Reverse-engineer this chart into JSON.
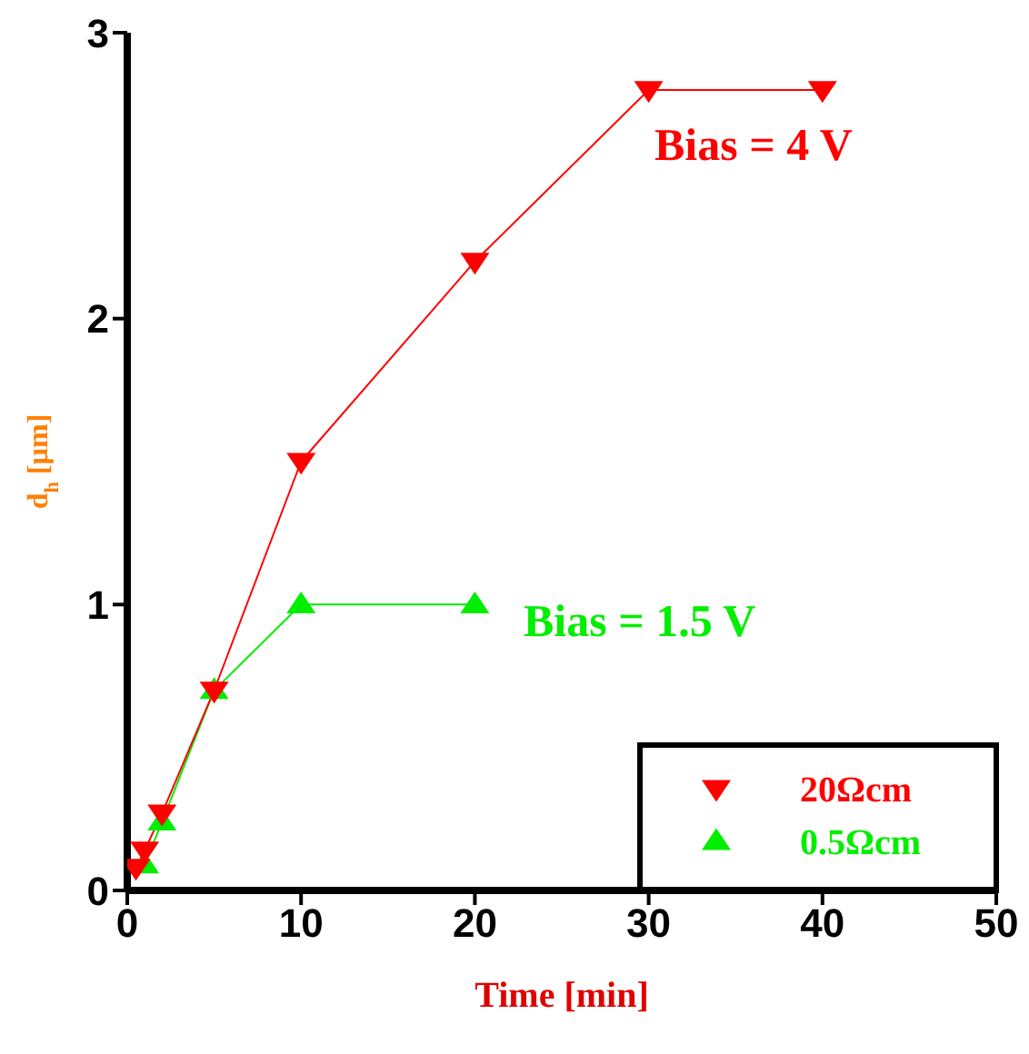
{
  "chart_data": {
    "type": "line",
    "xlabel": "Time [min]",
    "ylabel": "d$_{h}$ [µm]",
    "xlim": [
      0,
      50
    ],
    "ylim": [
      0,
      3
    ],
    "xticks": [
      0,
      10,
      20,
      30,
      40,
      50
    ],
    "yticks": [
      0,
      1,
      2,
      3
    ],
    "legend": "bottom right",
    "marker": "triangle",
    "series": [
      {
        "name": "20Ωcm",
        "color": "#ff0000",
        "marker": "triangle-down",
        "x": [
          0.5,
          1,
          2,
          5,
          10,
          20,
          30,
          40
        ],
        "values": [
          0.08,
          0.14,
          0.27,
          0.7,
          1.5,
          2.2,
          2.8,
          2.8
        ]
      },
      {
        "name": "0.5Ωcm",
        "color": "#00ee00",
        "marker": "triangle",
        "x": [
          1,
          2,
          5,
          10,
          20
        ],
        "values": [
          0.09,
          0.24,
          0.7,
          1.0,
          1.0
        ]
      }
    ],
    "annotations": [
      "Bias = 4 V",
      "Bias = 1.5 V"
    ]
  }
}
